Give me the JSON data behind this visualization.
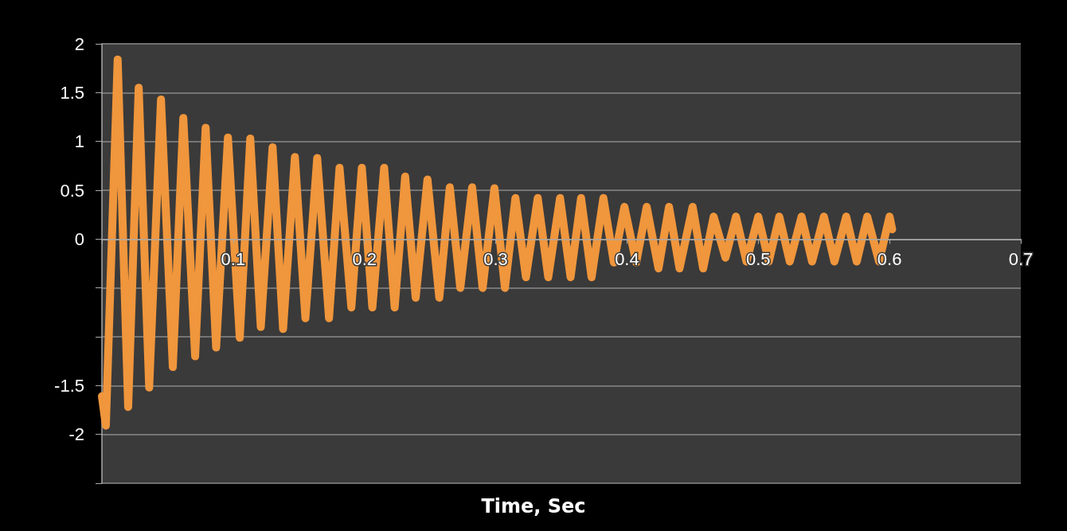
{
  "chart_data": {
    "type": "line",
    "xlabel": "Time, Sec",
    "x": [
      0,
      0.003,
      0.012,
      0.02,
      0.028,
      0.036,
      0.045,
      0.054,
      0.062,
      0.071,
      0.079,
      0.087,
      0.096,
      0.105,
      0.113,
      0.121,
      0.13,
      0.138,
      0.147,
      0.155,
      0.164,
      0.173,
      0.181,
      0.19,
      0.198,
      0.206,
      0.215,
      0.223,
      0.231,
      0.239,
      0.248,
      0.257,
      0.265,
      0.273,
      0.282,
      0.29,
      0.299,
      0.307,
      0.315,
      0.323,
      0.332,
      0.34,
      0.349,
      0.357,
      0.365,
      0.373,
      0.382,
      0.39,
      0.398,
      0.407,
      0.415,
      0.424,
      0.432,
      0.44,
      0.45,
      0.458,
      0.466,
      0.475,
      0.483,
      0.491,
      0.5,
      0.508,
      0.516,
      0.524,
      0.533,
      0.541,
      0.55,
      0.558,
      0.567,
      0.575,
      0.583,
      0.592,
      0.6,
      0.602
    ],
    "series": [
      {
        "color": "#f0963c",
        "values": [
          -1.61,
          -1.91,
          1.84,
          -1.72,
          1.55,
          -1.52,
          1.43,
          -1.31,
          1.24,
          -1.2,
          1.14,
          -1.11,
          1.04,
          -1.01,
          1.03,
          -0.9,
          0.94,
          -0.92,
          0.84,
          -0.81,
          0.83,
          -0.81,
          0.73,
          -0.7,
          0.73,
          -0.7,
          0.73,
          -0.7,
          0.64,
          -0.6,
          0.61,
          -0.6,
          0.53,
          -0.5,
          0.53,
          -0.5,
          0.52,
          -0.5,
          0.42,
          -0.39,
          0.42,
          -0.39,
          0.42,
          -0.39,
          0.42,
          -0.39,
          0.42,
          -0.24,
          0.33,
          -0.24,
          0.33,
          -0.3,
          0.33,
          -0.3,
          0.33,
          -0.3,
          0.23,
          -0.19,
          0.23,
          -0.23,
          0.23,
          -0.23,
          0.23,
          -0.23,
          0.23,
          -0.23,
          0.23,
          -0.23,
          0.23,
          -0.23,
          0.23,
          -0.23,
          0.23,
          0.1
        ]
      }
    ],
    "xlim": [
      0,
      0.7
    ],
    "xticks": [
      {
        "value": 0,
        "label": null
      },
      0.1,
      0.2,
      0.3,
      0.4,
      0.5,
      0.6,
      0.7
    ],
    "ylim": [
      -2.5,
      2
    ],
    "yticks": [
      2,
      1.5,
      1,
      0.5,
      0,
      {
        "value": -0.5,
        "label": null
      },
      {
        "value": -1,
        "label": null
      },
      -1.5,
      -2,
      {
        "value": -2.5,
        "label": null
      }
    ],
    "grid": "y",
    "line_style": "solid"
  }
}
